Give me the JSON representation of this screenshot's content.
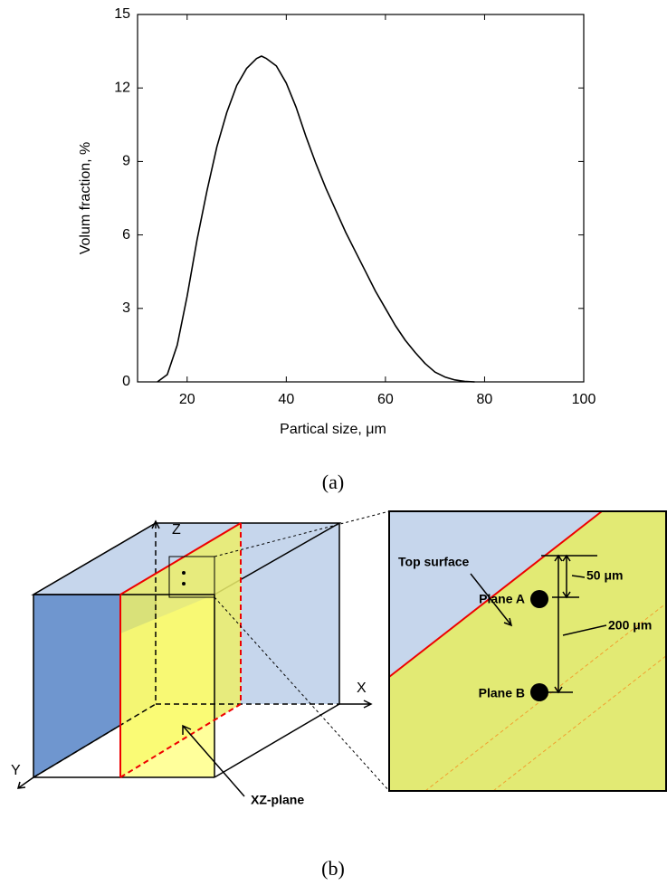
{
  "chart_data": {
    "type": "line",
    "xlabel": "Partical size, μm",
    "ylabel": "Volum fraction, %",
    "x": [
      14,
      16,
      18,
      20,
      22,
      24,
      26,
      28,
      30,
      32,
      34,
      35,
      36,
      38,
      40,
      42,
      44,
      46,
      48,
      50,
      52,
      54,
      56,
      58,
      60,
      62,
      64,
      66,
      68,
      70,
      72,
      74,
      76,
      78
    ],
    "y": [
      0,
      0.3,
      1.5,
      3.5,
      5.8,
      7.8,
      9.6,
      11,
      12.1,
      12.8,
      13.2,
      13.3,
      13.2,
      12.9,
      12.2,
      11.2,
      10,
      8.9,
      7.9,
      7.0,
      6.1,
      5.3,
      4.5,
      3.7,
      3.0,
      2.3,
      1.7,
      1.2,
      0.75,
      0.4,
      0.2,
      0.08,
      0.02,
      0
    ],
    "color": "#000000",
    "xlim": [
      10,
      100
    ],
    "xticks": [
      20,
      40,
      60,
      80,
      100
    ],
    "ylim": [
      0,
      15
    ],
    "yticks": [
      0,
      3,
      6,
      9,
      12,
      15
    ]
  },
  "captions": [
    "(a)",
    "(b)"
  ],
  "diagram": {
    "axes": [
      "Z",
      "X",
      "Y"
    ],
    "plane_label": "XZ-plane",
    "top_surface": "Top surface",
    "dimensions": [
      "50 μm",
      "200 μm"
    ],
    "planes": [
      "Plane A",
      "Plane B"
    ]
  }
}
